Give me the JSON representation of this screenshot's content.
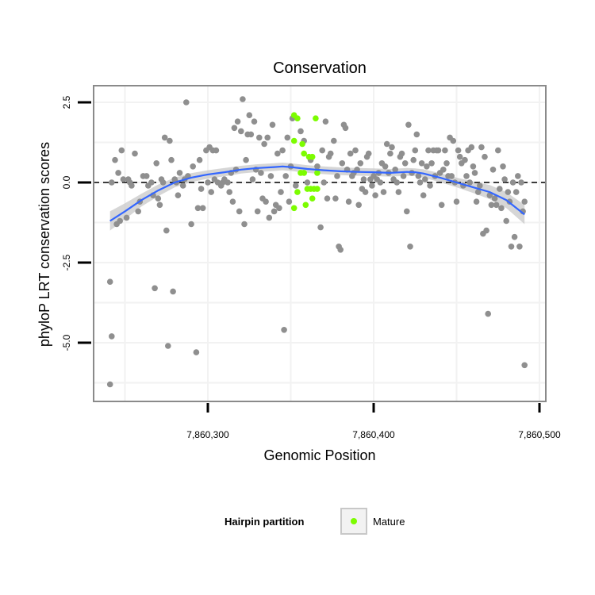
{
  "chart_data": {
    "type": "scatter",
    "title": "Conservation",
    "xlabel": "Genomic Position",
    "ylabel": "phyloP LRT conservation scores",
    "xlim": [
      7860230,
      7860504
    ],
    "ylim": [
      -6.4,
      3.1
    ],
    "x_ticks": [
      7860300,
      7860400,
      7860500
    ],
    "x_tick_labels": [
      "7,860,300",
      "7,860,400",
      "7,860,500"
    ],
    "y_ticks": [
      2.5,
      0.0,
      -2.5,
      -5.0
    ],
    "y_tick_labels": [
      "2.5",
      "0.0",
      "-2.5",
      "-5.0"
    ],
    "grid": true,
    "reference_line": 0,
    "colors": {
      "other": "#8f8f8f",
      "mature": "#7cfc00",
      "smooth": "#3366ff",
      "ribbon": "#c8c8c8",
      "panel_border": "#8a8a8a",
      "grid": "#f2f2f2"
    },
    "legend": {
      "title": "Hairpin partition",
      "position": "bottom",
      "entries": [
        {
          "label": "Mature",
          "color": "#7cfc00"
        }
      ]
    },
    "series": [
      {
        "name": "",
        "points": [
          [
            7860241,
            -6.3
          ],
          [
            7860241,
            -3.1
          ],
          [
            7860242,
            -4.8
          ],
          [
            7860242,
            0.0
          ],
          [
            7860244,
            0.7
          ],
          [
            7860245,
            -1.3
          ],
          [
            7860246,
            0.3
          ],
          [
            7860247,
            -1.2
          ],
          [
            7860248,
            1.0
          ],
          [
            7860249,
            0.1
          ],
          [
            7860251,
            -1.1
          ],
          [
            7860252,
            0.1
          ],
          [
            7860253,
            0.0
          ],
          [
            7860254,
            -0.1
          ],
          [
            7860256,
            0.9
          ],
          [
            7860258,
            -0.9
          ],
          [
            7860259,
            -0.6
          ],
          [
            7860261,
            0.2
          ],
          [
            7860263,
            0.2
          ],
          [
            7860264,
            -0.1
          ],
          [
            7860266,
            0.0
          ],
          [
            7860267,
            -0.4
          ],
          [
            7860268,
            -3.3
          ],
          [
            7860269,
            0.6
          ],
          [
            7860270,
            -0.5
          ],
          [
            7860271,
            -0.7
          ],
          [
            7860272,
            0.1
          ],
          [
            7860273,
            0.0
          ],
          [
            7860274,
            1.4
          ],
          [
            7860275,
            -1.5
          ],
          [
            7860276,
            -5.1
          ],
          [
            7860277,
            1.3
          ],
          [
            7860278,
            0.7
          ],
          [
            7860279,
            -3.4
          ],
          [
            7860280,
            0.1
          ],
          [
            7860281,
            0.0
          ],
          [
            7860282,
            -0.4
          ],
          [
            7860283,
            0.3
          ],
          [
            7860285,
            -0.1
          ],
          [
            7860286,
            0.1
          ],
          [
            7860287,
            2.5
          ],
          [
            7860288,
            0.2
          ],
          [
            7860290,
            -1.3
          ],
          [
            7860291,
            0.5
          ],
          [
            7860293,
            -5.3
          ],
          [
            7860294,
            -0.8
          ],
          [
            7860295,
            0.7
          ],
          [
            7860296,
            -0.2
          ],
          [
            7860297,
            -0.8
          ],
          [
            7860299,
            1.0
          ],
          [
            7860300,
            0.0
          ],
          [
            7860301,
            1.1
          ],
          [
            7860302,
            -0.3
          ],
          [
            7860303,
            1.0
          ],
          [
            7860304,
            0.1
          ],
          [
            7860305,
            1.0
          ],
          [
            7860306,
            0.0
          ],
          [
            7860308,
            -0.1
          ],
          [
            7860309,
            0.0
          ],
          [
            7860310,
            0.1
          ],
          [
            7860312,
            0.0
          ],
          [
            7860313,
            -0.3
          ],
          [
            7860314,
            0.3
          ],
          [
            7860315,
            -0.6
          ],
          [
            7860316,
            1.7
          ],
          [
            7860317,
            0.4
          ],
          [
            7860318,
            1.9
          ],
          [
            7860319,
            -0.9
          ],
          [
            7860320,
            1.6
          ],
          [
            7860321,
            2.6
          ],
          [
            7860322,
            -1.3
          ],
          [
            7860323,
            0.7
          ],
          [
            7860324,
            1.5
          ],
          [
            7860325,
            2.1
          ],
          [
            7860326,
            1.5
          ],
          [
            7860327,
            0.1
          ],
          [
            7860328,
            1.9
          ],
          [
            7860329,
            0.4
          ],
          [
            7860330,
            -0.9
          ],
          [
            7860331,
            1.4
          ],
          [
            7860332,
            0.3
          ],
          [
            7860333,
            -0.5
          ],
          [
            7860334,
            1.2
          ],
          [
            7860335,
            -0.6
          ],
          [
            7860336,
            1.4
          ],
          [
            7860337,
            -1.1
          ],
          [
            7860338,
            0.2
          ],
          [
            7860339,
            1.8
          ],
          [
            7860340,
            -0.9
          ],
          [
            7860341,
            -0.7
          ],
          [
            7860342,
            0.9
          ],
          [
            7860343,
            -0.8
          ],
          [
            7860344,
            -0.3
          ],
          [
            7860345,
            1.0
          ],
          [
            7860346,
            -4.6
          ],
          [
            7860347,
            0.2
          ],
          [
            7860348,
            1.4
          ],
          [
            7860349,
            -0.6
          ],
          [
            7860350,
            0.5
          ],
          [
            7860351,
            2.0
          ],
          [
            7860353,
            -0.1
          ],
          [
            7860356,
            1.6
          ],
          [
            7860358,
            1.3
          ],
          [
            7860360,
            0.0
          ],
          [
            7860362,
            0.7
          ],
          [
            7860366,
            0.5
          ],
          [
            7860368,
            -1.4
          ],
          [
            7860369,
            1.0
          ],
          [
            7860370,
            0.0
          ],
          [
            7860371,
            1.9
          ],
          [
            7860372,
            -0.5
          ],
          [
            7860373,
            0.8
          ],
          [
            7860374,
            0.9
          ],
          [
            7860376,
            1.3
          ],
          [
            7860377,
            -0.5
          ],
          [
            7860378,
            0.2
          ],
          [
            7860379,
            -2.0
          ],
          [
            7860380,
            -2.1
          ],
          [
            7860381,
            0.6
          ],
          [
            7860382,
            1.8
          ],
          [
            7860383,
            1.7
          ],
          [
            7860384,
            0.4
          ],
          [
            7860385,
            -0.6
          ],
          [
            7860386,
            0.9
          ],
          [
            7860387,
            0.2
          ],
          [
            7860388,
            0.3
          ],
          [
            7860389,
            1.0
          ],
          [
            7860390,
            0.4
          ],
          [
            7860391,
            -0.7
          ],
          [
            7860392,
            0.6
          ],
          [
            7860393,
            -0.2
          ],
          [
            7860394,
            0.1
          ],
          [
            7860395,
            -0.3
          ],
          [
            7860396,
            0.8
          ],
          [
            7860397,
            0.9
          ],
          [
            7860398,
            0.1
          ],
          [
            7860399,
            -0.1
          ],
          [
            7860400,
            0.2
          ],
          [
            7860401,
            -0.4
          ],
          [
            7860402,
            0.1
          ],
          [
            7860403,
            0.3
          ],
          [
            7860404,
            0.0
          ],
          [
            7860405,
            0.6
          ],
          [
            7860406,
            -0.3
          ],
          [
            7860407,
            0.5
          ],
          [
            7860408,
            1.2
          ],
          [
            7860409,
            0.3
          ],
          [
            7860410,
            0.9
          ],
          [
            7860411,
            1.1
          ],
          [
            7860412,
            0.1
          ],
          [
            7860413,
            0.4
          ],
          [
            7860414,
            0.0
          ],
          [
            7860415,
            -0.3
          ],
          [
            7860416,
            0.8
          ],
          [
            7860417,
            0.9
          ],
          [
            7860418,
            0.2
          ],
          [
            7860419,
            0.6
          ],
          [
            7860420,
            -0.9
          ],
          [
            7860421,
            1.8
          ],
          [
            7860422,
            -2.0
          ],
          [
            7860423,
            0.3
          ],
          [
            7860424,
            0.7
          ],
          [
            7860425,
            1.0
          ],
          [
            7860426,
            1.5
          ],
          [
            7860427,
            0.2
          ],
          [
            7860428,
            0.0
          ],
          [
            7860429,
            0.6
          ],
          [
            7860430,
            -0.4
          ],
          [
            7860431,
            0.1
          ],
          [
            7860432,
            0.5
          ],
          [
            7860433,
            1.0
          ],
          [
            7860434,
            -0.1
          ],
          [
            7860435,
            0.6
          ],
          [
            7860436,
            1.0
          ],
          [
            7860437,
            0.2
          ],
          [
            7860438,
            1.0
          ],
          [
            7860439,
            1.0
          ],
          [
            7860440,
            0.3
          ],
          [
            7860441,
            -0.7
          ],
          [
            7860442,
            0.4
          ],
          [
            7860443,
            1.0
          ],
          [
            7860444,
            0.6
          ],
          [
            7860445,
            0.2
          ],
          [
            7860446,
            1.4
          ],
          [
            7860447,
            0.2
          ],
          [
            7860448,
            1.3
          ],
          [
            7860449,
            0.0
          ],
          [
            7860450,
            -0.6
          ],
          [
            7860451,
            1.0
          ],
          [
            7860452,
            0.8
          ],
          [
            7860453,
            0.6
          ],
          [
            7860454,
            -0.1
          ],
          [
            7860455,
            0.7
          ],
          [
            7860456,
            0.2
          ],
          [
            7860457,
            1.0
          ],
          [
            7860458,
            0.0
          ],
          [
            7860459,
            1.1
          ],
          [
            7860460,
            0.5
          ],
          [
            7860461,
            0.3
          ],
          [
            7860462,
            -0.6
          ],
          [
            7860463,
            -0.3
          ],
          [
            7860464,
            -0.1
          ],
          [
            7860465,
            1.1
          ],
          [
            7860466,
            -1.6
          ],
          [
            7860467,
            0.8
          ],
          [
            7860468,
            -1.5
          ],
          [
            7860469,
            -4.1
          ],
          [
            7860470,
            -0.4
          ],
          [
            7860471,
            -0.7
          ],
          [
            7860472,
            0.4
          ],
          [
            7860473,
            -0.5
          ],
          [
            7860474,
            -0.7
          ],
          [
            7860475,
            1.0
          ],
          [
            7860476,
            -0.2
          ],
          [
            7860477,
            -0.8
          ],
          [
            7860478,
            0.5
          ],
          [
            7860479,
            0.1
          ],
          [
            7860480,
            -1.2
          ],
          [
            7860481,
            -0.3
          ],
          [
            7860482,
            -0.6
          ],
          [
            7860483,
            -2.0
          ],
          [
            7860484,
            0.0
          ],
          [
            7860485,
            -1.7
          ],
          [
            7860486,
            -0.3
          ],
          [
            7860487,
            0.2
          ],
          [
            7860488,
            -2.0
          ],
          [
            7860489,
            0.0
          ],
          [
            7860490,
            -0.9
          ],
          [
            7860491,
            -5.7
          ],
          [
            7860491,
            -0.6
          ]
        ]
      },
      {
        "name": "Mature",
        "points": [
          [
            7860352,
            2.1
          ],
          [
            7860354,
            2.0
          ],
          [
            7860352,
            1.3
          ],
          [
            7860357,
            1.2
          ],
          [
            7860358,
            0.9
          ],
          [
            7860361,
            0.8
          ],
          [
            7860363,
            0.8
          ],
          [
            7860365,
            2.0
          ],
          [
            7860356,
            0.3
          ],
          [
            7860358,
            0.3
          ],
          [
            7860366,
            0.3
          ],
          [
            7860360,
            -0.2
          ],
          [
            7860362,
            -0.2
          ],
          [
            7860364,
            -0.2
          ],
          [
            7860352,
            -0.8
          ],
          [
            7860354,
            -0.3
          ],
          [
            7860359,
            -0.7
          ],
          [
            7860363,
            -0.5
          ],
          [
            7860366,
            -0.2
          ]
        ]
      }
    ],
    "smooth": {
      "x": [
        7860241,
        7860250,
        7860260,
        7860270,
        7860280,
        7860290,
        7860300,
        7860310,
        7860320,
        7860330,
        7860340,
        7860345,
        7860350,
        7860360,
        7860370,
        7860380,
        7860390,
        7860400,
        7860410,
        7860420,
        7860425,
        7860430,
        7860440,
        7860450,
        7860460,
        7860470,
        7860480,
        7860491
      ],
      "y": [
        -1.2,
        -0.9,
        -0.55,
        -0.25,
        0.0,
        0.15,
        0.25,
        0.32,
        0.4,
        0.45,
        0.48,
        0.5,
        0.48,
        0.42,
        0.38,
        0.35,
        0.33,
        0.32,
        0.3,
        0.33,
        0.32,
        0.28,
        0.15,
        0.0,
        -0.15,
        -0.3,
        -0.55,
        -1.0
      ],
      "se": [
        0.3,
        0.25,
        0.2,
        0.18,
        0.15,
        0.14,
        0.13,
        0.13,
        0.12,
        0.12,
        0.12,
        0.12,
        0.12,
        0.12,
        0.12,
        0.12,
        0.12,
        0.12,
        0.12,
        0.12,
        0.12,
        0.13,
        0.14,
        0.15,
        0.18,
        0.22,
        0.25,
        0.3
      ]
    }
  }
}
